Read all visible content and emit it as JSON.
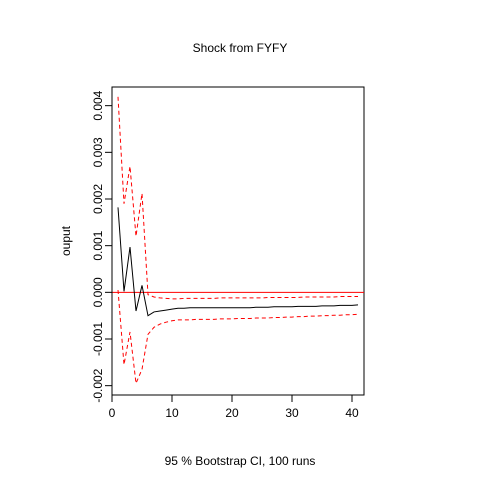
{
  "chart_data": {
    "type": "line",
    "title": "Shock from FYFY",
    "xlabel": "95 % Bootstrap CI,  100 runs",
    "ylabel": "ouput",
    "xlim": [
      0,
      42
    ],
    "ylim": [
      -0.0022,
      0.0044
    ],
    "xticks": [
      0,
      10,
      20,
      30,
      40
    ],
    "xtick_labels": [
      "0",
      "10",
      "20",
      "30",
      "40"
    ],
    "yticks": [
      -0.002,
      -0.001,
      0,
      0.001,
      0.002,
      0.003,
      0.004
    ],
    "ytick_labels": [
      "-0.002",
      "-0.001",
      "0.000",
      "0.001",
      "0.002",
      "0.003",
      "0.004"
    ],
    "grid": false,
    "reference_line": {
      "y": 0,
      "color": "#ff0000"
    },
    "x": [
      1,
      2,
      3,
      4,
      5,
      6,
      7,
      8,
      9,
      10,
      11,
      12,
      13,
      14,
      15,
      16,
      17,
      18,
      19,
      20,
      21,
      22,
      23,
      24,
      25,
      26,
      27,
      28,
      29,
      30,
      31,
      32,
      33,
      34,
      35,
      36,
      37,
      38,
      39,
      40,
      41
    ],
    "series": [
      {
        "role": "irf",
        "color": "#000000",
        "dash": "solid",
        "values": [
          0.00182,
          2e-05,
          0.00097,
          -0.0004,
          0.00015,
          -0.0005,
          -0.00042,
          -0.0004,
          -0.00038,
          -0.00036,
          -0.00034,
          -0.00034,
          -0.00033,
          -0.00033,
          -0.00033,
          -0.00033,
          -0.00033,
          -0.00033,
          -0.00033,
          -0.00033,
          -0.00033,
          -0.00033,
          -0.00033,
          -0.00032,
          -0.00032,
          -0.00032,
          -0.00031,
          -0.00031,
          -0.00031,
          -0.00031,
          -0.0003,
          -0.0003,
          -0.0003,
          -0.0003,
          -0.00029,
          -0.00029,
          -0.00029,
          -0.00028,
          -0.00028,
          -0.00028,
          -0.00027
        ]
      },
      {
        "role": "upper",
        "color": "#ff0000",
        "dash": "dashed",
        "values": [
          0.00419,
          0.0019,
          0.0027,
          0.0012,
          0.00212,
          -5e-05,
          -0.0001,
          -0.00012,
          -0.00013,
          -0.00014,
          -0.00014,
          -0.00013,
          -0.00013,
          -0.00013,
          -0.00013,
          -0.00013,
          -0.00013,
          -0.00012,
          -0.00012,
          -0.00012,
          -0.00012,
          -0.00012,
          -0.00012,
          -0.00012,
          -0.00012,
          -0.00011,
          -0.00011,
          -0.00011,
          -0.00011,
          -0.00011,
          -0.00011,
          -0.0001,
          -0.0001,
          -0.0001,
          -0.0001,
          -0.0001,
          -0.0001,
          -9e-05,
          -9e-05,
          -9e-05,
          -9e-05
        ]
      },
      {
        "role": "lower",
        "color": "#ff0000",
        "dash": "dashed",
        "values": [
          5e-05,
          -0.00155,
          -0.00085,
          -0.00195,
          -0.00165,
          -0.0009,
          -0.00075,
          -0.00068,
          -0.00064,
          -0.00061,
          -0.00059,
          -0.00059,
          -0.00059,
          -0.00058,
          -0.00058,
          -0.00058,
          -0.00058,
          -0.00057,
          -0.00057,
          -0.00057,
          -0.00056,
          -0.00056,
          -0.00056,
          -0.00055,
          -0.00055,
          -0.00055,
          -0.00054,
          -0.00054,
          -0.00053,
          -0.00053,
          -0.00052,
          -0.00052,
          -0.00051,
          -0.00051,
          -0.0005,
          -0.0005,
          -0.00049,
          -0.00049,
          -0.00048,
          -0.00048,
          -0.00047
        ]
      }
    ]
  }
}
